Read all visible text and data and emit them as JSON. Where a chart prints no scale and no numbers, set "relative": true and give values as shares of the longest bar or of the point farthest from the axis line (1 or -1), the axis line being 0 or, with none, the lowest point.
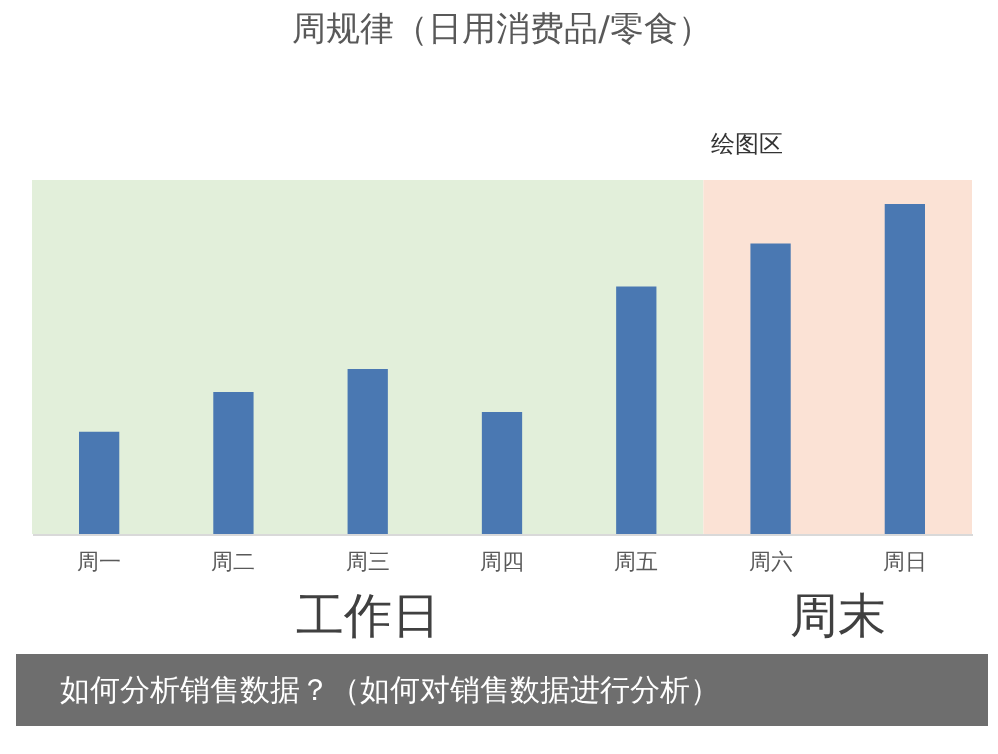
{
  "chart_data": {
    "type": "bar",
    "title": "周规律（日用消费品/零食）",
    "relative": true,
    "categories": [
      "周一",
      "周二",
      "周三",
      "周四",
      "周五",
      "周六",
      "周日"
    ],
    "values": [
      0.31,
      0.43,
      0.5,
      0.37,
      0.75,
      0.88,
      1
    ],
    "color": "#4a78b2",
    "bands": [
      {
        "axis": "x",
        "from": "周一",
        "to": "周五",
        "label": "工作日",
        "color": "#e2efda"
      },
      {
        "axis": "x",
        "from": "周六",
        "to": "周日",
        "label": "周末",
        "color": "#fbe2d5"
      }
    ],
    "annotations": [
      "绘图区",
      "如何分析销售数据？（如何对销售数据进行分析）"
    ],
    "grid": false
  }
}
